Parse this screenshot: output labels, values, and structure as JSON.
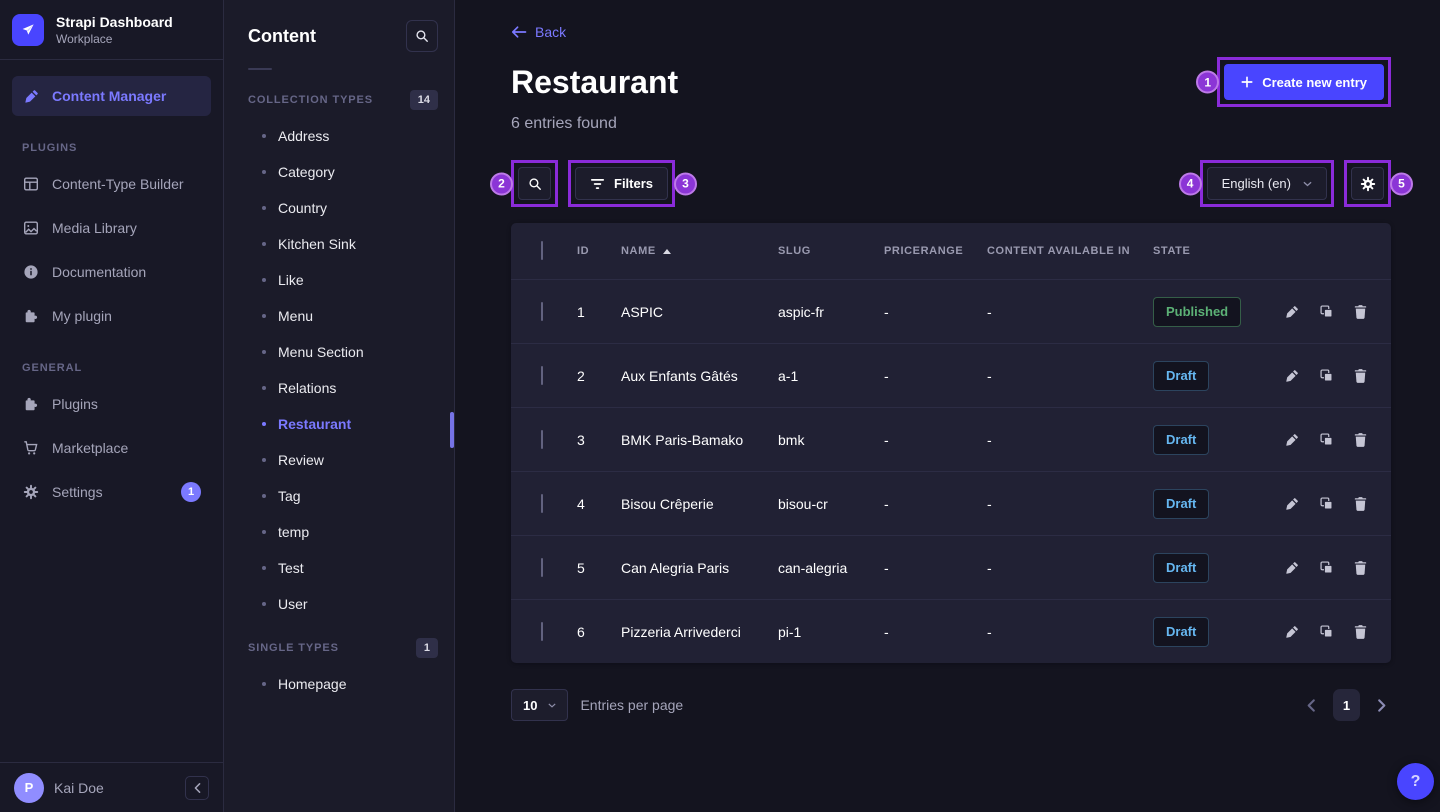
{
  "app": {
    "title": "Strapi Dashboard",
    "subtitle": "Workplace"
  },
  "nav": {
    "content_manager_label": "Content Manager",
    "plugins_label": "PLUGINS",
    "plugins_items": [
      {
        "label": "Content-Type Builder",
        "icon": "layout-icon"
      },
      {
        "label": "Media Library",
        "icon": "image-icon"
      },
      {
        "label": "Documentation",
        "icon": "info-icon"
      },
      {
        "label": "My plugin",
        "icon": "puzzle-icon"
      }
    ],
    "general_label": "GENERAL",
    "general_items": [
      {
        "label": "Plugins",
        "icon": "puzzle-icon"
      },
      {
        "label": "Marketplace",
        "icon": "cart-icon"
      },
      {
        "label": "Settings",
        "icon": "gear-icon",
        "badge": "1"
      }
    ],
    "user_initial": "P",
    "user_name": "Kai Doe"
  },
  "content_nav": {
    "title": "Content",
    "collection_types_label": "COLLECTION TYPES",
    "collection_types_count": "14",
    "collection_types": [
      "Address",
      "Category",
      "Country",
      "Kitchen Sink",
      "Like",
      "Menu",
      "Menu Section",
      "Relations",
      "Restaurant",
      "Review",
      "Tag",
      "temp",
      "Test",
      "User"
    ],
    "active_type": "Restaurant",
    "single_types_label": "SINGLE TYPES",
    "single_types_count": "1",
    "single_types": [
      "Homepage"
    ]
  },
  "page": {
    "back_label": "Back",
    "title": "Restaurant",
    "subtitle": "6 entries found",
    "create_button_label": "Create new entry"
  },
  "toolbar": {
    "filters_label": "Filters",
    "locale_value": "English (en)"
  },
  "table": {
    "headers": {
      "id": "ID",
      "name": "NAME",
      "slug": "SLUG",
      "pricerange": "PRICERANGE",
      "content_available_in": "CONTENT AVAILABLE IN",
      "state": "STATE"
    },
    "sort": {
      "column": "NAME",
      "direction": "asc"
    },
    "rows": [
      {
        "id": "1",
        "name": "ASPIC",
        "slug": "aspic-fr",
        "pricerange": "-",
        "content_available_in": "-",
        "state": "Published"
      },
      {
        "id": "2",
        "name": "Aux Enfants Gâtés",
        "slug": "a-1",
        "pricerange": "-",
        "content_available_in": "-",
        "state": "Draft"
      },
      {
        "id": "3",
        "name": "BMK Paris-Bamako",
        "slug": "bmk",
        "pricerange": "-",
        "content_available_in": "-",
        "state": "Draft"
      },
      {
        "id": "4",
        "name": "Bisou Crêperie",
        "slug": "bisou-cr",
        "pricerange": "-",
        "content_available_in": "-",
        "state": "Draft"
      },
      {
        "id": "5",
        "name": "Can Alegria Paris",
        "slug": "can-alegria",
        "pricerange": "-",
        "content_available_in": "-",
        "state": "Draft"
      },
      {
        "id": "6",
        "name": "Pizzeria Arrivederci",
        "slug": "pi-1",
        "pricerange": "-",
        "content_available_in": "-",
        "state": "Draft"
      }
    ]
  },
  "pagination": {
    "page_size": "10",
    "entries_per_page_label": "Entries per page",
    "current_page": "1"
  },
  "annotations": {
    "create": "1",
    "search": "2",
    "filters": "3",
    "locale": "4",
    "settings": "5"
  },
  "help_label": "?",
  "colors": {
    "primary": "#4945ff",
    "primary_light": "#7b79ff",
    "annotation_purple": "#8a2bd9",
    "published_green": "#5cb176",
    "draft_blue": "#66b7f1",
    "card_bg": "#212134",
    "sidebar_bg": "#181826",
    "main_bg": "#14141f"
  }
}
